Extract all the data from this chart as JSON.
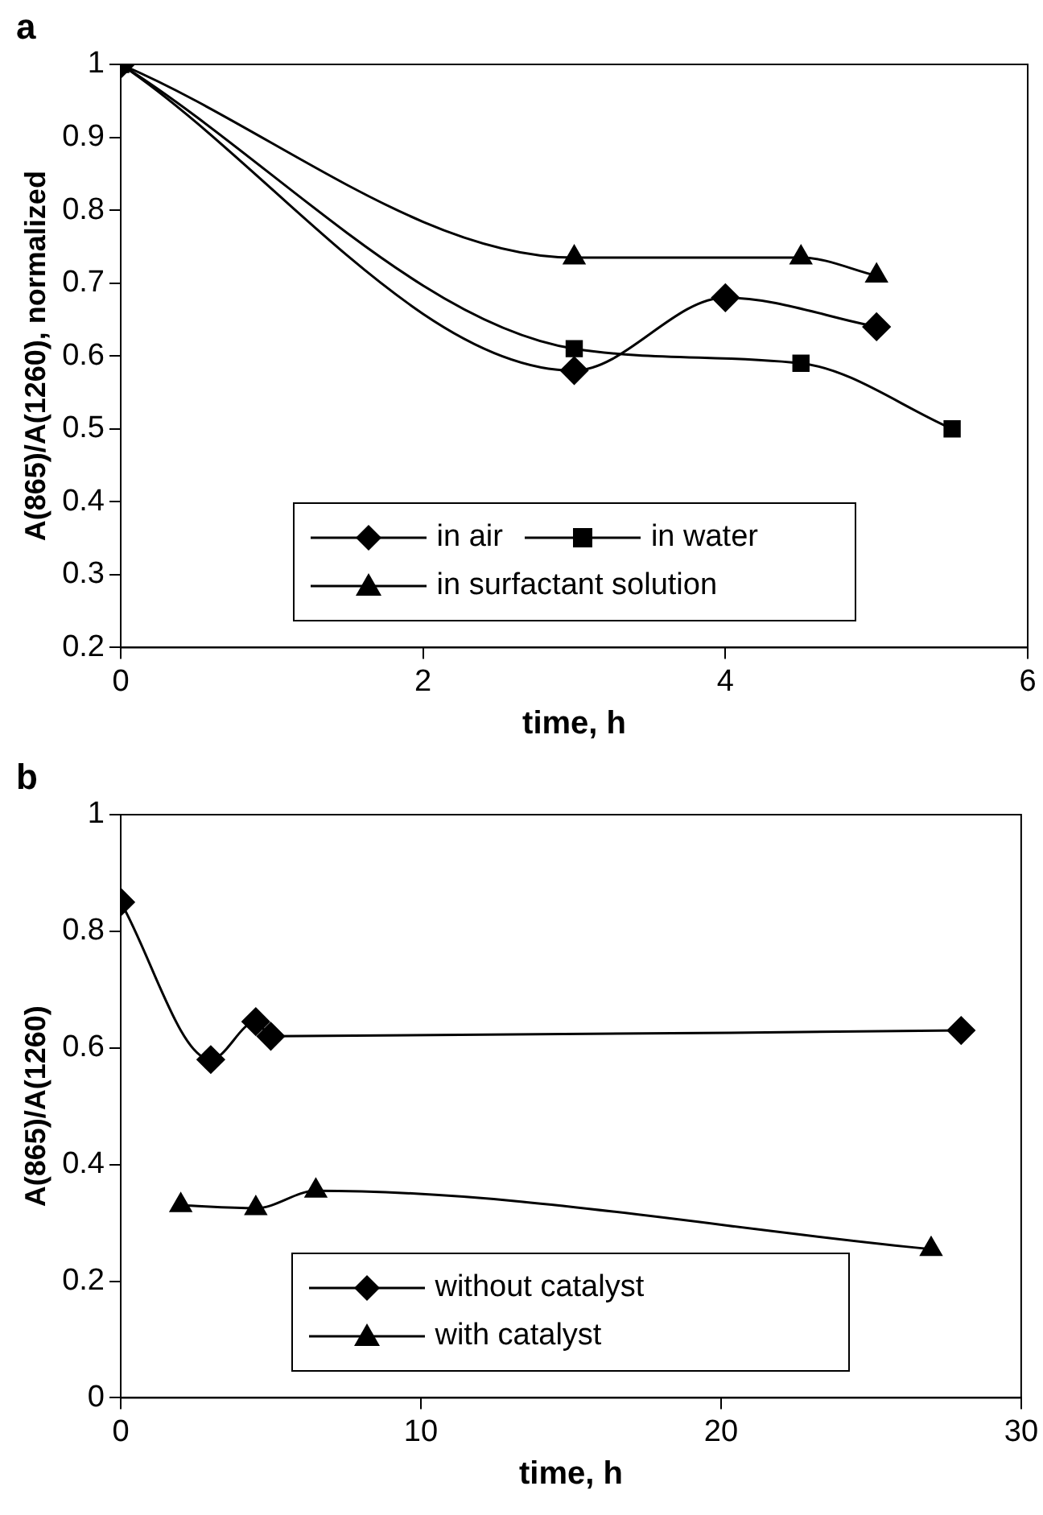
{
  "chart_data": [
    {
      "type": "line",
      "title": "a",
      "xlabel": "time, h",
      "ylabel": "A(865)/A(1260), normalized",
      "xlim": [
        0,
        6
      ],
      "xticks": [
        0,
        2,
        4,
        6
      ],
      "ylim": [
        0.2,
        1
      ],
      "yticks": [
        0.2,
        0.3,
        0.4,
        0.5,
        0.6,
        0.7,
        0.8,
        0.9,
        1
      ],
      "grid": false,
      "legend": "bottom",
      "series": [
        {
          "name": "in air",
          "color": "#000000",
          "marker": "diamond",
          "x": [
            0,
            3,
            4,
            5
          ],
          "values": [
            1,
            0.58,
            0.68,
            0.64
          ]
        },
        {
          "name": "in water",
          "color": "#000000",
          "marker": "square",
          "x": [
            0,
            3,
            4.5,
            5.5
          ],
          "values": [
            1,
            0.61,
            0.59,
            0.5
          ]
        },
        {
          "name": "in surfactant solution",
          "color": "#000000",
          "marker": "triangle",
          "x": [
            0,
            3,
            4.5,
            5
          ],
          "values": [
            1,
            0.735,
            0.735,
            0.71
          ]
        }
      ]
    },
    {
      "type": "line",
      "title": "b",
      "xlabel": "time, h",
      "ylabel": "A(865)/A(1260)",
      "xlim": [
        0,
        30
      ],
      "xticks": [
        0,
        10,
        20,
        30
      ],
      "ylim": [
        0,
        1
      ],
      "yticks": [
        0,
        0.2,
        0.4,
        0.6,
        0.8,
        1
      ],
      "grid": false,
      "legend": "bottom",
      "series": [
        {
          "name": "without catalyst",
          "color": "#000000",
          "marker": "diamond",
          "x": [
            0,
            3,
            4.5,
            5,
            28
          ],
          "values": [
            0.85,
            0.58,
            0.645,
            0.62,
            0.63
          ]
        },
        {
          "name": "with catalyst",
          "color": "#000000",
          "marker": "triangle",
          "x": [
            2,
            4.5,
            6.5,
            27
          ],
          "values": [
            0.33,
            0.325,
            0.355,
            0.255
          ]
        }
      ]
    }
  ]
}
